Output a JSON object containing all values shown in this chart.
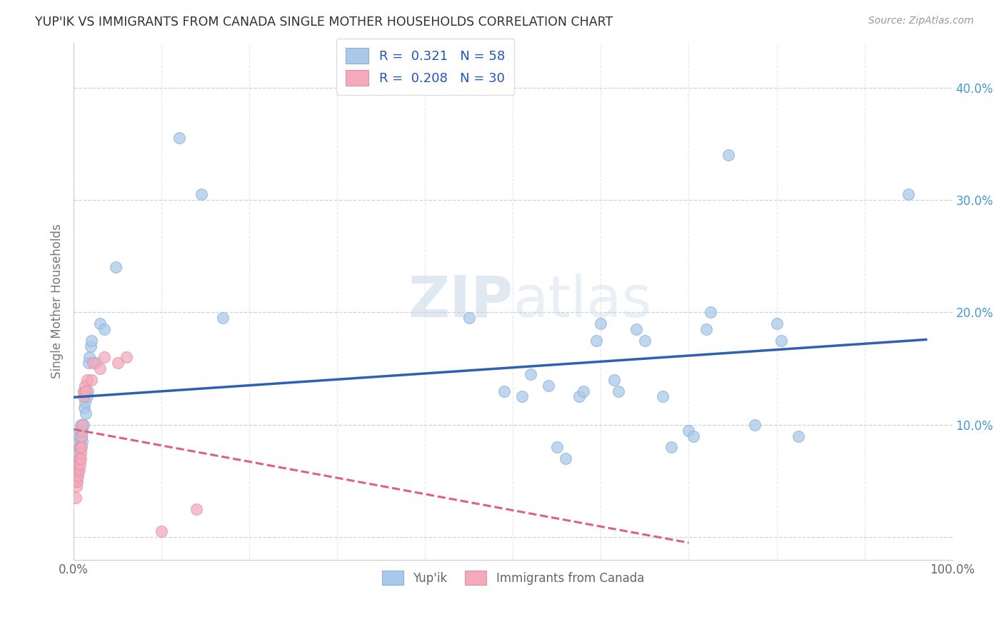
{
  "title": "YUP'IK VS IMMIGRANTS FROM CANADA SINGLE MOTHER HOUSEHOLDS CORRELATION CHART",
  "source": "Source: ZipAtlas.com",
  "ylabel": "Single Mother Households",
  "y_ticks": [
    0.0,
    0.1,
    0.2,
    0.3,
    0.4
  ],
  "legend_entries": [
    {
      "label": "R =  0.321   N = 58",
      "color": "#aac9ea"
    },
    {
      "label": "R =  0.208   N = 30",
      "color": "#f4aabb"
    }
  ],
  "watermark": "ZIPatlas",
  "yupik_scatter": [
    [
      0.003,
      0.05
    ],
    [
      0.004,
      0.055
    ],
    [
      0.004,
      0.065
    ],
    [
      0.005,
      0.06
    ],
    [
      0.005,
      0.075
    ],
    [
      0.006,
      0.08
    ],
    [
      0.006,
      0.09
    ],
    [
      0.007,
      0.085
    ],
    [
      0.007,
      0.095
    ],
    [
      0.008,
      0.08
    ],
    [
      0.008,
      0.1
    ],
    [
      0.009,
      0.09
    ],
    [
      0.01,
      0.085
    ],
    [
      0.01,
      0.095
    ],
    [
      0.011,
      0.1
    ],
    [
      0.012,
      0.115
    ],
    [
      0.013,
      0.12
    ],
    [
      0.014,
      0.11
    ],
    [
      0.015,
      0.125
    ],
    [
      0.016,
      0.13
    ],
    [
      0.017,
      0.155
    ],
    [
      0.018,
      0.16
    ],
    [
      0.019,
      0.17
    ],
    [
      0.02,
      0.175
    ],
    [
      0.025,
      0.155
    ],
    [
      0.03,
      0.19
    ],
    [
      0.035,
      0.185
    ],
    [
      0.048,
      0.24
    ],
    [
      0.12,
      0.355
    ],
    [
      0.145,
      0.305
    ],
    [
      0.17,
      0.195
    ],
    [
      0.45,
      0.195
    ],
    [
      0.49,
      0.13
    ],
    [
      0.51,
      0.125
    ],
    [
      0.52,
      0.145
    ],
    [
      0.54,
      0.135
    ],
    [
      0.55,
      0.08
    ],
    [
      0.56,
      0.07
    ],
    [
      0.575,
      0.125
    ],
    [
      0.58,
      0.13
    ],
    [
      0.595,
      0.175
    ],
    [
      0.6,
      0.19
    ],
    [
      0.615,
      0.14
    ],
    [
      0.62,
      0.13
    ],
    [
      0.64,
      0.185
    ],
    [
      0.65,
      0.175
    ],
    [
      0.67,
      0.125
    ],
    [
      0.68,
      0.08
    ],
    [
      0.7,
      0.095
    ],
    [
      0.705,
      0.09
    ],
    [
      0.72,
      0.185
    ],
    [
      0.725,
      0.2
    ],
    [
      0.745,
      0.34
    ],
    [
      0.775,
      0.1
    ],
    [
      0.8,
      0.19
    ],
    [
      0.805,
      0.175
    ],
    [
      0.825,
      0.09
    ],
    [
      0.95,
      0.305
    ]
  ],
  "canada_scatter": [
    [
      0.002,
      0.035
    ],
    [
      0.003,
      0.045
    ],
    [
      0.003,
      0.05
    ],
    [
      0.004,
      0.05
    ],
    [
      0.004,
      0.06
    ],
    [
      0.005,
      0.055
    ],
    [
      0.005,
      0.065
    ],
    [
      0.006,
      0.06
    ],
    [
      0.006,
      0.07
    ],
    [
      0.007,
      0.065
    ],
    [
      0.007,
      0.08
    ],
    [
      0.008,
      0.075
    ],
    [
      0.008,
      0.07
    ],
    [
      0.009,
      0.08
    ],
    [
      0.009,
      0.09
    ],
    [
      0.01,
      0.1
    ],
    [
      0.011,
      0.125
    ],
    [
      0.011,
      0.13
    ],
    [
      0.012,
      0.13
    ],
    [
      0.013,
      0.135
    ],
    [
      0.014,
      0.13
    ],
    [
      0.015,
      0.14
    ],
    [
      0.02,
      0.14
    ],
    [
      0.022,
      0.155
    ],
    [
      0.03,
      0.15
    ],
    [
      0.035,
      0.16
    ],
    [
      0.05,
      0.155
    ],
    [
      0.06,
      0.16
    ],
    [
      0.1,
      0.005
    ],
    [
      0.14,
      0.025
    ]
  ],
  "yupik_color": "#aac9ea",
  "canada_color": "#f4aabb",
  "yupik_line_color": "#3060b0",
  "canada_line_color": "#e06080",
  "background_color": "#ffffff",
  "grid_color": "#c8d4de",
  "title_color": "#303030",
  "axis_label_color": "#4499cc",
  "xlim": [
    0.0,
    1.0
  ],
  "ylim": [
    -0.02,
    0.44
  ]
}
